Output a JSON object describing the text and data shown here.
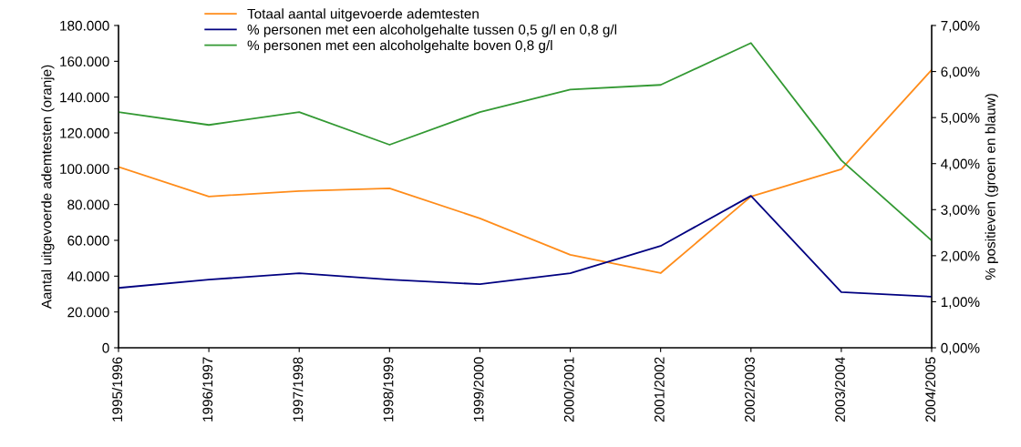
{
  "chart_data": {
    "type": "line",
    "categories": [
      "1995/1996",
      "1996/1997",
      "1997/1998",
      "1998/1999",
      "1999/2000",
      "2000/2001",
      "2001/2002",
      "2002/2003",
      "2003/2004",
      "2004/2005"
    ],
    "series": [
      {
        "name": "Totaal aantal uitgevoerde ademtesten",
        "color": "#ff8c1a",
        "values": [
          101000,
          84500,
          87500,
          89000,
          72300,
          51900,
          41700,
          84500,
          99700,
          155200
        ]
      },
      {
        "name": "% personen met een alcoholgehalte tussen 0,5 g/l en 0,8 g/l",
        "color": "#000080",
        "axis": "y2",
        "values": [
          1.3,
          1.48,
          1.62,
          1.48,
          1.38,
          1.62,
          2.21,
          3.3,
          1.21,
          1.11
        ]
      },
      {
        "name": "% personen met een alcoholgehalte boven 0,8 g/l",
        "color": "#339933",
        "axis": "y2",
        "values": [
          5.12,
          4.84,
          5.12,
          4.41,
          5.12,
          5.61,
          5.71,
          6.62,
          4.07,
          2.33
        ]
      }
    ],
    "ylabel": "Aantal uitgevoerde ademtesten (oranje)",
    "y2label": "% positieven (groen en blauw)",
    "ylim": [
      0,
      180000
    ],
    "yticks": [
      {
        "value": 0,
        "label": "0"
      },
      {
        "value": 20000,
        "label": "20.000"
      },
      {
        "value": 40000,
        "label": "40.000"
      },
      {
        "value": 60000,
        "label": "60.000"
      },
      {
        "value": 80000,
        "label": "80.000"
      },
      {
        "value": 100000,
        "label": "100.000"
      },
      {
        "value": 120000,
        "label": "120.000"
      },
      {
        "value": 140000,
        "label": "140.000"
      },
      {
        "value": 160000,
        "label": "160.000"
      },
      {
        "value": 180000,
        "label": "180.000"
      }
    ],
    "y2lim": [
      0,
      7
    ],
    "y2ticks": [
      {
        "value": 0,
        "label": "0,00%"
      },
      {
        "value": 1,
        "label": "1,00%"
      },
      {
        "value": 2,
        "label": "2,00%"
      },
      {
        "value": 3,
        "label": "3,00%"
      },
      {
        "value": 4,
        "label": "4,00%"
      },
      {
        "value": 5,
        "label": "5,00%"
      },
      {
        "value": 6,
        "label": "6,00%"
      },
      {
        "value": 7,
        "label": "7,00%"
      }
    ],
    "legend": "top",
    "grid": false,
    "marker": "none",
    "line_style": "solid"
  }
}
